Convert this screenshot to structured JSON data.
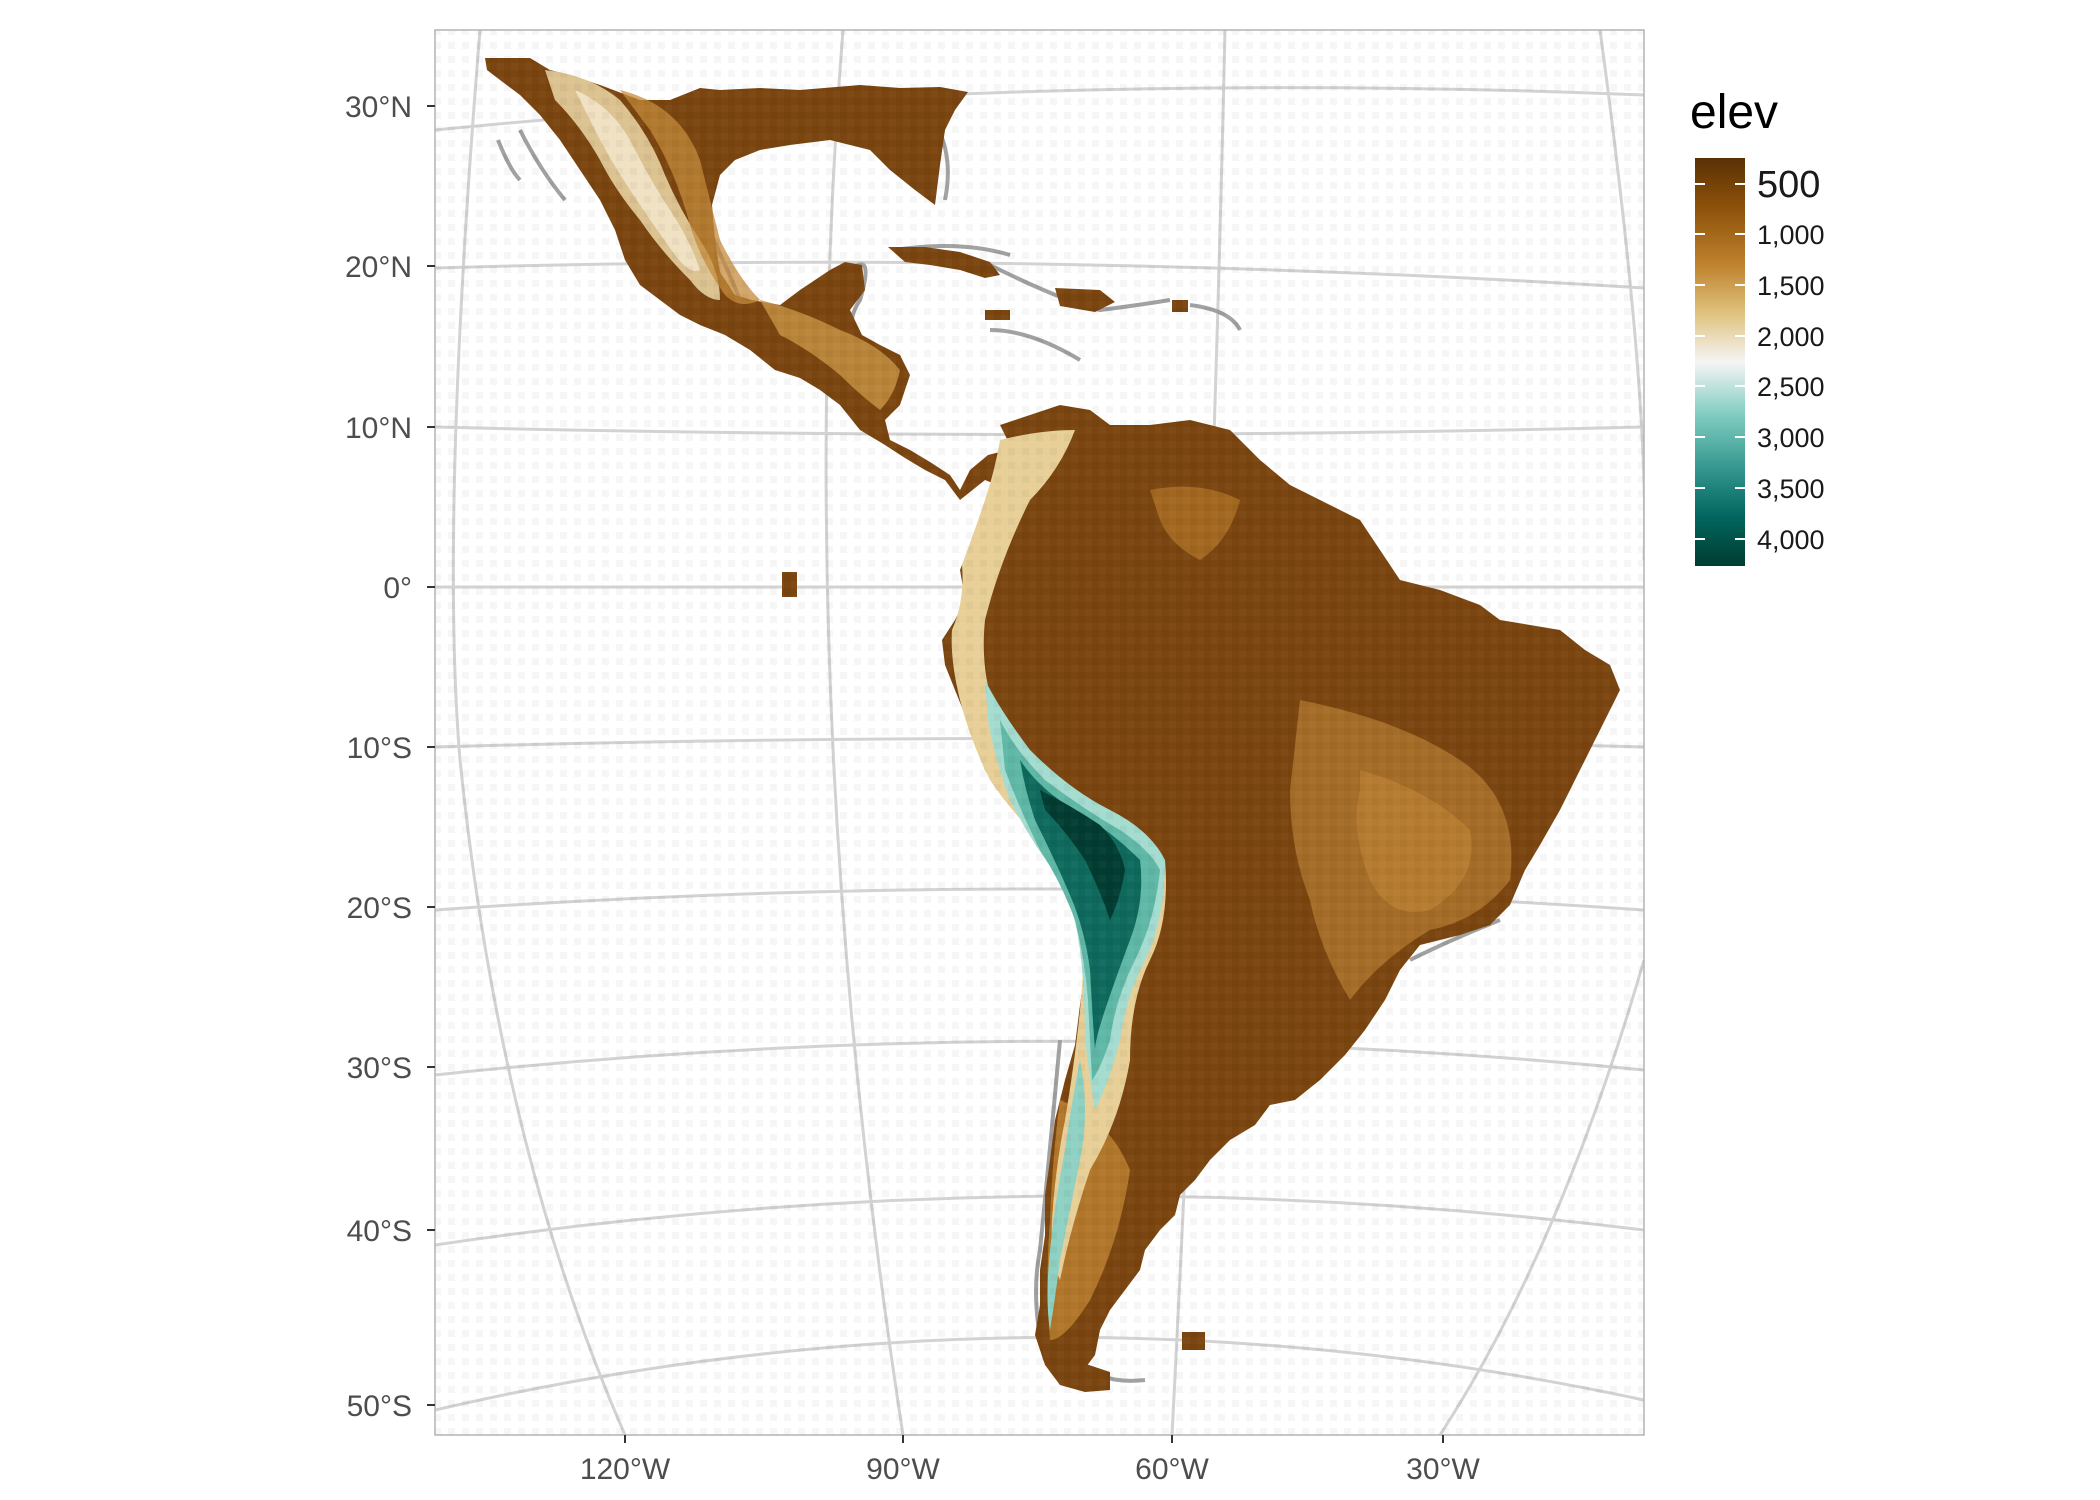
{
  "map": {
    "lat_labels": [
      "30°N",
      "20°N",
      "10°N",
      "0°",
      "10°S",
      "20°S",
      "30°S",
      "40°S",
      "50°S"
    ],
    "lon_labels": [
      "120°W",
      "90°W",
      "60°W",
      "30°W"
    ]
  },
  "legend": {
    "title": "elev",
    "breaks": [
      "500",
      "1,000",
      "1,500",
      "2,000",
      "2,500",
      "3,000",
      "3,500",
      "4,000"
    ],
    "colors": [
      "#5a3105",
      "#8c510a",
      "#bf812d",
      "#dfc27d",
      "#f5f5f5",
      "#80cdc1",
      "#35978f",
      "#01665e",
      "#003c30"
    ]
  },
  "colors": {
    "graticule": "#d2d2d2",
    "panel_border": "#b3b3b3",
    "coastline": "#9e9e9e",
    "lowland": "#7a4510",
    "upland": "#b8802e",
    "highland": "#e9d5a6",
    "andes_high": "#0f6a5d",
    "andes_mid": "#5fb7a6"
  }
}
